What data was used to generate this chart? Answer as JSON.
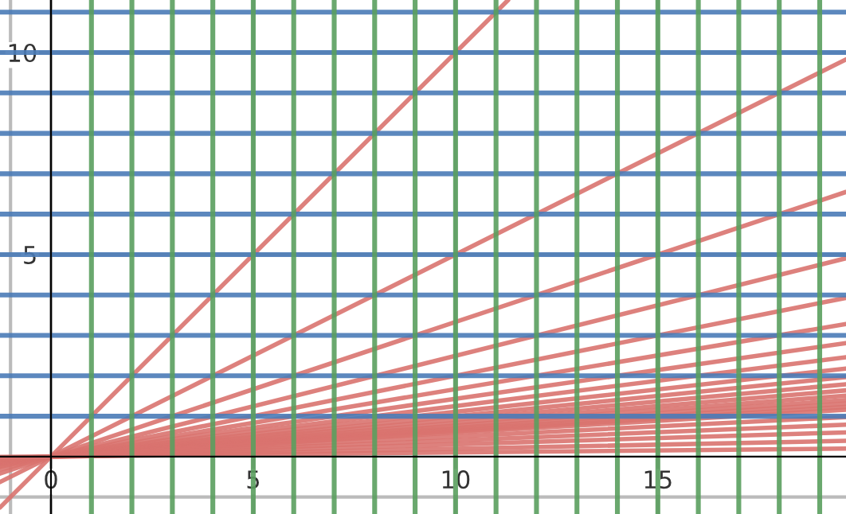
{
  "chart_data": {
    "type": "line",
    "xlim": [
      -1.26,
      19.65
    ],
    "ylim": [
      -1.42,
      11.3
    ],
    "xticks": [
      {
        "value": -1,
        "label": null
      },
      0,
      5,
      10,
      15
    ],
    "yticks": [
      {
        "value": -1,
        "label": null
      },
      5,
      10
    ],
    "grid": true,
    "marker": "none",
    "line_style": "solid",
    "ref_lines": [
      {
        "axis": "y",
        "value": 1,
        "color": "#4a7bb7"
      },
      {
        "axis": "y",
        "value": 2,
        "color": "#4a7bb7"
      },
      {
        "axis": "y",
        "value": 3,
        "color": "#4a7bb7"
      },
      {
        "axis": "y",
        "value": 4,
        "color": "#4a7bb7"
      },
      {
        "axis": "y",
        "value": 5,
        "color": "#4a7bb7"
      },
      {
        "axis": "y",
        "value": 6,
        "color": "#4a7bb7"
      },
      {
        "axis": "y",
        "value": 7,
        "color": "#4a7bb7"
      },
      {
        "axis": "y",
        "value": 8,
        "color": "#4a7bb7"
      },
      {
        "axis": "y",
        "value": 9,
        "color": "#4a7bb7"
      },
      {
        "axis": "y",
        "value": 10,
        "color": "#4a7bb7"
      },
      {
        "axis": "y",
        "value": 11,
        "color": "#4a7bb7"
      },
      {
        "axis": "x",
        "value": 1,
        "color": "#5a9e5e"
      },
      {
        "axis": "x",
        "value": 2,
        "color": "#5a9e5e"
      },
      {
        "axis": "x",
        "value": 3,
        "color": "#5a9e5e"
      },
      {
        "axis": "x",
        "value": 4,
        "color": "#5a9e5e"
      },
      {
        "axis": "x",
        "value": 5,
        "color": "#5a9e5e"
      },
      {
        "axis": "x",
        "value": 6,
        "color": "#5a9e5e"
      },
      {
        "axis": "x",
        "value": 7,
        "color": "#5a9e5e"
      },
      {
        "axis": "x",
        "value": 8,
        "color": "#5a9e5e"
      },
      {
        "axis": "x",
        "value": 9,
        "color": "#5a9e5e"
      },
      {
        "axis": "x",
        "value": 10,
        "color": "#5a9e5e"
      },
      {
        "axis": "x",
        "value": 11,
        "color": "#5a9e5e"
      },
      {
        "axis": "x",
        "value": 12,
        "color": "#5a9e5e"
      },
      {
        "axis": "x",
        "value": 13,
        "color": "#5a9e5e"
      },
      {
        "axis": "x",
        "value": 14,
        "color": "#5a9e5e"
      },
      {
        "axis": "x",
        "value": 15,
        "color": "#5a9e5e"
      },
      {
        "axis": "x",
        "value": 16,
        "color": "#5a9e5e"
      },
      {
        "axis": "x",
        "value": 17,
        "color": "#5a9e5e"
      },
      {
        "axis": "x",
        "value": 18,
        "color": "#5a9e5e"
      },
      {
        "axis": "x",
        "value": 19,
        "color": "#5a9e5e"
      }
    ],
    "series": [
      {
        "x": [
          -1.26,
          11.3
        ],
        "values": [
          -1.26,
          11.3
        ],
        "color": "#d9736f"
      },
      {
        "x": [
          -1.26,
          19.65
        ],
        "values": [
          -0.63,
          9.83
        ],
        "color": "#d9736f"
      },
      {
        "x": [
          -1.26,
          19.65
        ],
        "values": [
          -0.42,
          6.55
        ],
        "color": "#d9736f"
      },
      {
        "x": [
          -1.26,
          19.65
        ],
        "values": [
          -0.32,
          4.91
        ],
        "color": "#d9736f"
      },
      {
        "x": [
          -1.26,
          19.65
        ],
        "values": [
          -0.25,
          3.93
        ],
        "color": "#d9736f"
      },
      {
        "x": [
          -1.26,
          19.65
        ],
        "values": [
          -0.21,
          3.28
        ],
        "color": "#d9736f"
      },
      {
        "x": [
          -1.26,
          19.65
        ],
        "values": [
          -0.18,
          2.81
        ],
        "color": "#d9736f"
      },
      {
        "x": [
          -1.26,
          19.65
        ],
        "values": [
          -0.16,
          2.46
        ],
        "color": "#d9736f"
      },
      {
        "x": [
          -1.26,
          19.65
        ],
        "values": [
          -0.14,
          2.18
        ],
        "color": "#d9736f"
      },
      {
        "x": [
          -1.26,
          19.65
        ],
        "values": [
          -0.13,
          1.97
        ],
        "color": "#d9736f"
      },
      {
        "x": [
          -1.26,
          19.65
        ],
        "values": [
          -0.11,
          1.79
        ],
        "color": "#d9736f"
      },
      {
        "x": [
          -1.26,
          19.65
        ],
        "values": [
          -0.11,
          1.64
        ],
        "color": "#d9736f"
      },
      {
        "x": [
          -1.26,
          19.65
        ],
        "values": [
          -0.1,
          1.51
        ],
        "color": "#d9736f"
      },
      {
        "x": [
          -1.26,
          19.65
        ],
        "values": [
          -0.09,
          1.4
        ],
        "color": "#d9736f"
      },
      {
        "x": [
          -1.26,
          19.65
        ],
        "values": [
          -0.08,
          1.31
        ],
        "color": "#d9736f"
      },
      {
        "x": [
          -1.26,
          19.65
        ],
        "values": [
          -0.08,
          1.23
        ],
        "color": "#d9736f"
      },
      {
        "x": [
          -1.26,
          19.65
        ],
        "values": [
          -0.07,
          1.16
        ],
        "color": "#d9736f"
      },
      {
        "x": [
          -1.26,
          19.65
        ],
        "values": [
          -0.06,
          0.98
        ],
        "color": "#d9736f"
      },
      {
        "x": [
          -1.26,
          19.65
        ],
        "values": [
          -0.05,
          0.79
        ],
        "color": "#d9736f"
      },
      {
        "x": [
          -1.26,
          19.65
        ],
        "values": [
          -0.04,
          0.6
        ],
        "color": "#d9736f"
      },
      {
        "x": [
          -1.26,
          19.65
        ],
        "values": [
          -0.03,
          0.39
        ],
        "color": "#d9736f"
      },
      {
        "x": [
          -1.26,
          19.65
        ],
        "values": [
          -0.01,
          0.2
        ],
        "color": "#d9736f"
      }
    ]
  }
}
